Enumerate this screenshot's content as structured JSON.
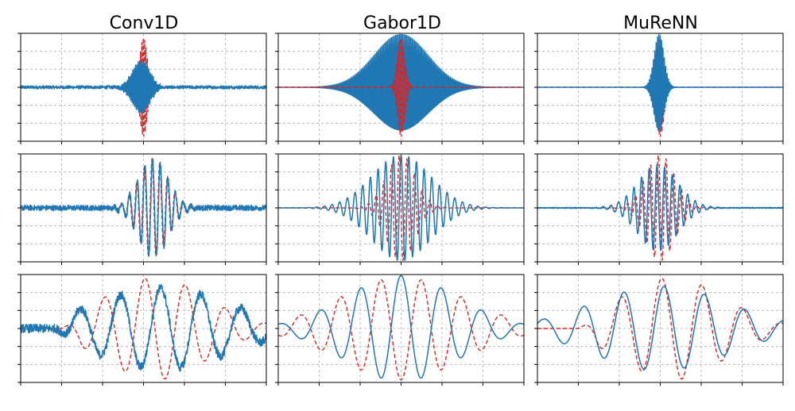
{
  "figure": {
    "columns": [
      "Conv1D",
      "Gabor1D",
      "MuReNN"
    ]
  },
  "colors": {
    "learned": "#1f77b4",
    "target": "#d62728",
    "grid": "#b0b0b0",
    "axes": "#000000"
  },
  "chart_data": [
    {
      "type": "line",
      "title": "Conv1D",
      "row": 1,
      "col": 1,
      "xlim": [
        -1,
        1
      ],
      "ylim": [
        -1,
        1
      ],
      "grid": true,
      "legend": "none",
      "series": [
        {
          "style": "dashed",
          "color": "#d62728",
          "wave": {
            "center": 0.0,
            "envelope_width": 0.03,
            "cycles_per_unit": 90,
            "amplitude": 0.96,
            "phase": 1.57
          }
        },
        {
          "style": "solid",
          "color": "#1f77b4",
          "wave": {
            "center": -0.02,
            "envelope_width": 0.07,
            "cycles_per_unit": 90,
            "amplitude": 0.5,
            "phase": 0.3
          },
          "noise": 0.03
        }
      ]
    },
    {
      "type": "line",
      "title": "Gabor1D",
      "row": 1,
      "col": 2,
      "xlim": [
        -1,
        1
      ],
      "ylim": [
        -1,
        1
      ],
      "grid": true,
      "legend": "none",
      "series": [
        {
          "style": "solid",
          "color": "#1f77b4",
          "wave": {
            "center": 0.0,
            "envelope_width": 0.22,
            "cycles_per_unit": 90,
            "amplitude": 0.98,
            "phase": 0.0
          }
        },
        {
          "style": "dashed",
          "color": "#d62728",
          "wave": {
            "center": 0.0,
            "envelope_width": 0.03,
            "cycles_per_unit": 90,
            "amplitude": 0.96,
            "phase": 1.57
          }
        }
      ]
    },
    {
      "type": "line",
      "title": "MuReNN",
      "row": 1,
      "col": 3,
      "xlim": [
        -1,
        1
      ],
      "ylim": [
        -1,
        1
      ],
      "grid": true,
      "legend": "none",
      "series": [
        {
          "style": "dashed",
          "color": "#d62728",
          "wave": {
            "center": 0.0,
            "envelope_width": 0.03,
            "cycles_per_unit": 90,
            "amplitude": 0.96,
            "phase": 1.57
          }
        },
        {
          "style": "solid",
          "color": "#1f77b4",
          "wave": {
            "center": -0.01,
            "envelope_width": 0.04,
            "cycles_per_unit": 90,
            "amplitude": 0.98,
            "phase": 0.6
          }
        }
      ]
    },
    {
      "type": "line",
      "title": "",
      "row": 2,
      "col": 1,
      "xlim": [
        -1,
        1
      ],
      "ylim": [
        -1,
        1
      ],
      "grid": true,
      "legend": "none",
      "series": [
        {
          "style": "dashed",
          "color": "#d62728",
          "wave": {
            "center": 0.08,
            "envelope_width": 0.12,
            "cycles_per_unit": 16,
            "amplitude": 0.92,
            "phase": 1.0
          }
        },
        {
          "style": "solid",
          "color": "#1f77b4",
          "wave": {
            "center": 0.08,
            "envelope_width": 0.12,
            "cycles_per_unit": 16,
            "amplitude": 0.92,
            "phase": 0.6
          },
          "noise": 0.05
        }
      ]
    },
    {
      "type": "line",
      "title": "",
      "row": 2,
      "col": 2,
      "xlim": [
        -1,
        1
      ],
      "ylim": [
        -1,
        1
      ],
      "grid": true,
      "legend": "none",
      "series": [
        {
          "style": "dashed",
          "color": "#d62728",
          "wave": {
            "center": 0.0,
            "envelope_width": 0.12,
            "cycles_per_unit": 16,
            "amplitude": 0.98,
            "phase": 1.57
          }
        },
        {
          "style": "solid",
          "color": "#1f77b4",
          "wave": {
            "center": 0.0,
            "envelope_width": 0.24,
            "cycles_per_unit": 16,
            "amplitude": 0.98,
            "phase": 0.0
          }
        }
      ]
    },
    {
      "type": "line",
      "title": "",
      "row": 2,
      "col": 3,
      "xlim": [
        -1,
        1
      ],
      "ylim": [
        -1,
        1
      ],
      "grid": true,
      "legend": "none",
      "series": [
        {
          "style": "dashed",
          "color": "#d62728",
          "wave": {
            "center": 0.0,
            "envelope_width": 0.12,
            "cycles_per_unit": 16,
            "amplitude": 0.98,
            "phase": 1.57
          }
        },
        {
          "style": "solid",
          "color": "#1f77b4",
          "wave": {
            "center": -0.02,
            "envelope_width": 0.16,
            "cycles_per_unit": 16,
            "amplitude": 0.8,
            "phase": 0.7
          },
          "noise": 0.01
        }
      ]
    },
    {
      "type": "line",
      "title": "",
      "row": 3,
      "col": 1,
      "xlim": [
        -1,
        1
      ],
      "ylim": [
        -1,
        1
      ],
      "grid": true,
      "legend": "none",
      "series": [
        {
          "style": "dashed",
          "color": "#d62728",
          "wave": {
            "center": 0.1,
            "envelope_width": 0.42,
            "cycles_per_unit": 3.05,
            "amplitude": 0.95,
            "phase": 1.7
          },
          "onset": -0.5
        },
        {
          "style": "solid",
          "color": "#1f77b4",
          "wave": {
            "center": 0.15,
            "envelope_width": 0.55,
            "cycles_per_unit": 3.05,
            "amplitude": 0.75,
            "phase": 0.2
          },
          "noise": 0.08,
          "onset": -0.55
        }
      ]
    },
    {
      "type": "line",
      "title": "",
      "row": 3,
      "col": 2,
      "xlim": [
        -1,
        1
      ],
      "ylim": [
        -1,
        1
      ],
      "grid": true,
      "legend": "none",
      "series": [
        {
          "style": "dashed",
          "color": "#d62728",
          "wave": {
            "center": 0.0,
            "envelope_width": 0.5,
            "cycles_per_unit": 3.05,
            "amplitude": 0.95,
            "phase": 3.14
          }
        },
        {
          "style": "solid",
          "color": "#1f77b4",
          "wave": {
            "center": 0.0,
            "envelope_width": 0.45,
            "cycles_per_unit": 3.05,
            "amplitude": 0.98,
            "phase": 0.0
          }
        }
      ]
    },
    {
      "type": "line",
      "title": "",
      "row": 3,
      "col": 3,
      "xlim": [
        -1,
        1
      ],
      "ylim": [
        -1,
        1
      ],
      "grid": true,
      "legend": "none",
      "series": [
        {
          "style": "dashed",
          "color": "#d62728",
          "wave": {
            "center": 0.1,
            "envelope_width": 0.42,
            "cycles_per_unit": 3.05,
            "amplitude": 0.95,
            "phase": 1.7
          },
          "onset": -0.5
        },
        {
          "style": "solid",
          "color": "#1f77b4",
          "wave": {
            "center": 0.0,
            "envelope_width": 0.55,
            "cycles_per_unit": 3.05,
            "amplitude": 0.78,
            "phase": -0.6
          }
        }
      ]
    }
  ]
}
